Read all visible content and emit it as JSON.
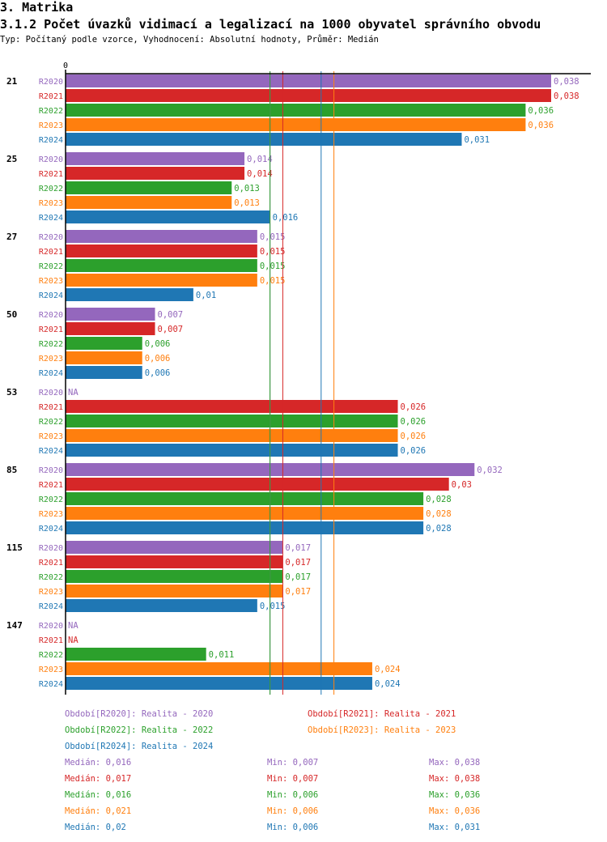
{
  "header": {
    "section": "3. Matrika",
    "title": "3.1.2 Počet úvazků vidimací a legalizací na 1000 obyvatel správního obvodu",
    "subtitle": "Typ: Počítaný podle vzorce, Vyhodnocení: Absolutní hodnoty, Průměr: Medián"
  },
  "chart_data": {
    "type": "bar",
    "orientation": "horizontal",
    "axis_zero_label": "0",
    "xlim": [
      0,
      0.038
    ],
    "series_colors": {
      "R2020": "#9467bd",
      "R2021": "#d62728",
      "R2022": "#2ca02c",
      "R2023": "#ff7f0e",
      "R2024": "#1f77b4"
    },
    "series_names": [
      "R2020",
      "R2021",
      "R2022",
      "R2023",
      "R2024"
    ],
    "groups": [
      {
        "label": "21",
        "values": [
          0.038,
          0.038,
          0.036,
          0.036,
          0.031
        ],
        "labels": [
          "0,038",
          "0,038",
          "0,036",
          "0,036",
          "0,031"
        ]
      },
      {
        "label": "25",
        "values": [
          0.014,
          0.014,
          0.013,
          0.013,
          0.016
        ],
        "labels": [
          "0,014",
          "0,014",
          "0,013",
          "0,013",
          "0,016"
        ]
      },
      {
        "label": "27",
        "values": [
          0.015,
          0.015,
          0.015,
          0.015,
          0.01
        ],
        "labels": [
          "0,015",
          "0,015",
          "0,015",
          "0,015",
          "0,01"
        ]
      },
      {
        "label": "50",
        "values": [
          0.007,
          0.007,
          0.006,
          0.006,
          0.006
        ],
        "labels": [
          "0,007",
          "0,007",
          "0,006",
          "0,006",
          "0,006"
        ]
      },
      {
        "label": "53",
        "values": [
          null,
          0.026,
          0.026,
          0.026,
          0.026
        ],
        "labels": [
          "NA",
          "0,026",
          "0,026",
          "0,026",
          "0,026"
        ]
      },
      {
        "label": "85",
        "values": [
          0.032,
          0.03,
          0.028,
          0.028,
          0.028
        ],
        "labels": [
          "0,032",
          "0,03",
          "0,028",
          "0,028",
          "0,028"
        ]
      },
      {
        "label": "115",
        "values": [
          0.017,
          0.017,
          0.017,
          0.017,
          0.015
        ],
        "labels": [
          "0,017",
          "0,017",
          "0,017",
          "0,017",
          "0,015"
        ]
      },
      {
        "label": "147",
        "values": [
          null,
          null,
          0.011,
          0.024,
          0.024
        ],
        "labels": [
          "NA",
          "NA",
          "0,011",
          "0,024",
          "0,024"
        ]
      }
    ],
    "medians": [
      0.016,
      0.017,
      0.016,
      0.021,
      0.02
    ],
    "legend": [
      "Období[R2020]: Realita - 2020",
      "Období[R2021]: Realita - 2021",
      "Období[R2022]: Realita - 2022",
      "Období[R2023]: Realita - 2023",
      "Období[R2024]: Realita - 2024"
    ],
    "stats": [
      {
        "median": "Medián: 0,016",
        "min": "Min: 0,007",
        "max": "Max: 0,038"
      },
      {
        "median": "Medián: 0,017",
        "min": "Min: 0,007",
        "max": "Max: 0,038"
      },
      {
        "median": "Medián: 0,016",
        "min": "Min: 0,006",
        "max": "Max: 0,036"
      },
      {
        "median": "Medián: 0,021",
        "min": "Min: 0,006",
        "max": "Max: 0,036"
      },
      {
        "median": "Medián: 0,02",
        "min": "Min: 0,006",
        "max": "Max: 0,031"
      }
    ]
  }
}
